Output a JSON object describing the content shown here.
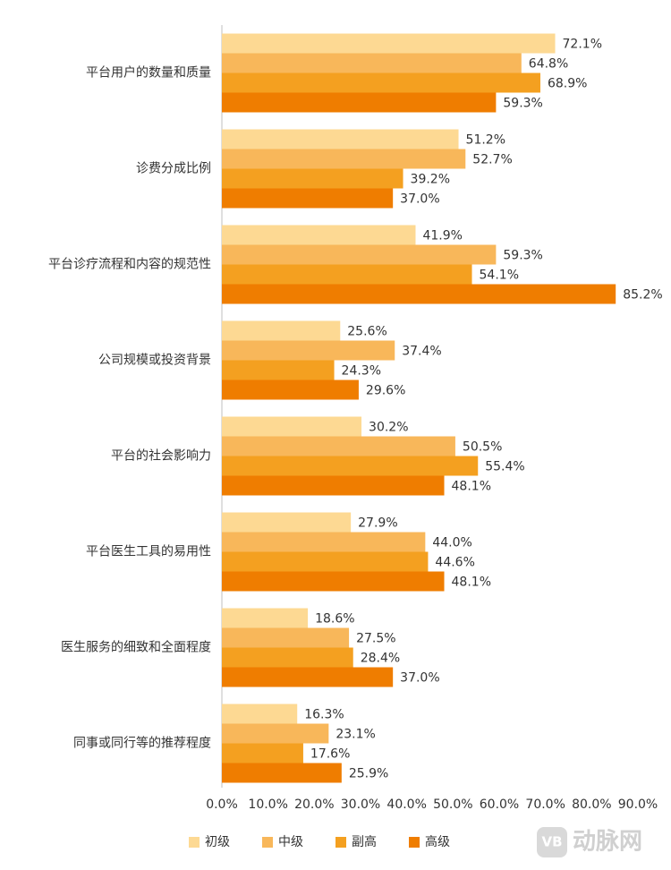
{
  "chart_data": {
    "type": "hbar",
    "categories": [
      "平台用户的数量和质量",
      "诊费分成比例",
      "平台诊疗流程和内容的规范性",
      "公司规模或投资背景",
      "平台的社会影响力",
      "平台医生工具的易用性",
      "医生服务的细致和全面程度",
      "同事或同行等的推荐程度"
    ],
    "series": [
      {
        "name": "初级",
        "color": "#fdd993",
        "values": [
          72.1,
          51.2,
          41.9,
          25.6,
          30.2,
          27.9,
          18.6,
          16.3
        ],
        "value_labels": [
          "72.1%",
          "51.2%",
          "41.9%",
          "25.6%",
          "30.2%",
          "27.9%",
          "18.6%",
          "16.3%"
        ]
      },
      {
        "name": "中级",
        "color": "#f8b75a",
        "values": [
          64.8,
          52.7,
          59.3,
          37.4,
          50.5,
          44.0,
          27.5,
          23.1
        ],
        "value_labels": [
          "64.8%",
          "52.7%",
          "59.3%",
          "37.4%",
          "50.5%",
          "44.0%",
          "27.5%",
          "23.1%"
        ]
      },
      {
        "name": "副高",
        "color": "#f4a020",
        "values": [
          68.9,
          39.2,
          54.1,
          24.3,
          55.4,
          44.6,
          28.4,
          17.6
        ],
        "value_labels": [
          "68.9%",
          "39.2%",
          "54.1%",
          "24.3%",
          "55.4%",
          "44.6%",
          "28.4%",
          "17.6%"
        ]
      },
      {
        "name": "高级",
        "color": "#ef7d00",
        "values": [
          59.3,
          37.0,
          85.2,
          29.6,
          48.1,
          48.1,
          37.0,
          25.9
        ],
        "value_labels": [
          "59.3%",
          "37.0%",
          "85.2%",
          "29.6%",
          "48.1%",
          "48.1%",
          "37.0%",
          "25.9%"
        ]
      }
    ],
    "xlim": [
      0,
      90
    ],
    "xticks": [
      {
        "value": 0,
        "label": "0.0%"
      },
      {
        "value": 10,
        "label": "10.0%"
      },
      {
        "value": 20,
        "label": "20.0%"
      },
      {
        "value": 30,
        "label": "30.0%"
      },
      {
        "value": 40,
        "label": "40.0%"
      },
      {
        "value": 50,
        "label": "50.0%"
      },
      {
        "value": 60,
        "label": "60.0%"
      },
      {
        "value": 70,
        "label": "70.0%"
      },
      {
        "value": 80,
        "label": "80.0%"
      },
      {
        "value": 90,
        "label": "90.0%"
      }
    ],
    "legend": "bottom",
    "watermark": "动脉网",
    "watermark_logo": "VB"
  }
}
